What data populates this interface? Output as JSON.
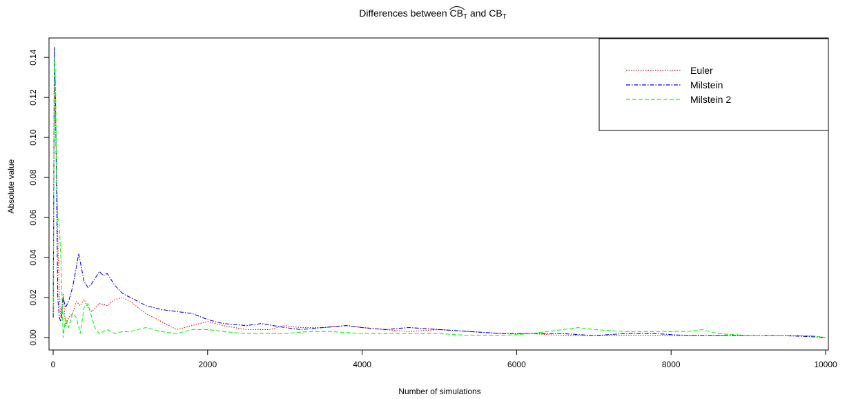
{
  "chart_data": {
    "type": "line",
    "title": {
      "prefix": "Differences between ",
      "term1": "CB",
      "sub1": "T",
      "conjunction": " and ",
      "term2": "CB",
      "sub2": "T"
    },
    "xlabel": "Number of simulations",
    "ylabel": "Absolute value",
    "xlim": [
      0,
      10000
    ],
    "ylim": [
      0,
      0.148
    ],
    "xticks": [
      0,
      2000,
      4000,
      6000,
      8000,
      10000
    ],
    "yticks": [
      0.0,
      0.02,
      0.04,
      0.06,
      0.08,
      0.1,
      0.12,
      0.14
    ],
    "ytick_labels": [
      "0.00",
      "0.02",
      "0.04",
      "0.06",
      "0.08",
      "0.10",
      "0.12",
      "0.14"
    ],
    "legend_position": "top-right",
    "series": [
      {
        "name": "Euler",
        "color": "#ff0000",
        "dash": "dotted",
        "x": [
          1,
          15,
          30,
          45,
          60,
          80,
          100,
          130,
          160,
          200,
          250,
          300,
          350,
          400,
          450,
          500,
          600,
          700,
          800,
          900,
          1000,
          1200,
          1400,
          1600,
          1800,
          2000,
          2200,
          2500,
          2800,
          3000,
          3200,
          3500,
          3800,
          4000,
          4300,
          4600,
          5000,
          5400,
          5800,
          6200,
          6600,
          7000,
          7400,
          7800,
          8200,
          8600,
          9000,
          9400,
          9800,
          10000
        ],
        "y": [
          0.012,
          0.125,
          0.105,
          0.09,
          0.05,
          0.02,
          0.01,
          0.022,
          0.006,
          0.01,
          0.012,
          0.018,
          0.016,
          0.019,
          0.015,
          0.013,
          0.017,
          0.016,
          0.019,
          0.02,
          0.018,
          0.012,
          0.008,
          0.004,
          0.006,
          0.008,
          0.006,
          0.004,
          0.004,
          0.006,
          0.005,
          0.005,
          0.006,
          0.005,
          0.004,
          0.003,
          0.004,
          0.003,
          0.002,
          0.002,
          0.001,
          0.001,
          0.001,
          0.001,
          0.001,
          0.001,
          0.001,
          0.001,
          0.001,
          0.0
        ]
      },
      {
        "name": "Milstein",
        "color": "#0000ff",
        "dash": "dashdot",
        "x": [
          1,
          15,
          30,
          45,
          60,
          80,
          100,
          130,
          160,
          200,
          250,
          300,
          330,
          360,
          400,
          450,
          500,
          550,
          600,
          650,
          700,
          800,
          900,
          1000,
          1200,
          1400,
          1600,
          1800,
          2000,
          2200,
          2500,
          2700,
          3000,
          3200,
          3500,
          3800,
          4000,
          4300,
          4600,
          5000,
          5400,
          5800,
          6200,
          6600,
          7000,
          7400,
          7800,
          8200,
          8600,
          9000,
          9400,
          9800,
          10000
        ],
        "y": [
          0.01,
          0.145,
          0.12,
          0.07,
          0.02,
          0.01,
          0.008,
          0.02,
          0.015,
          0.018,
          0.025,
          0.035,
          0.042,
          0.036,
          0.028,
          0.025,
          0.027,
          0.03,
          0.033,
          0.031,
          0.032,
          0.026,
          0.022,
          0.02,
          0.016,
          0.014,
          0.013,
          0.012,
          0.009,
          0.007,
          0.006,
          0.007,
          0.005,
          0.004,
          0.005,
          0.006,
          0.005,
          0.004,
          0.005,
          0.004,
          0.003,
          0.002,
          0.002,
          0.002,
          0.001,
          0.002,
          0.002,
          0.001,
          0.001,
          0.001,
          0.001,
          0.0005,
          0.0
        ]
      },
      {
        "name": "Milstein 2",
        "color": "#00ff00",
        "dash": "dashed",
        "x": [
          1,
          15,
          30,
          45,
          60,
          80,
          100,
          130,
          160,
          200,
          250,
          300,
          350,
          400,
          450,
          500,
          550,
          600,
          700,
          800,
          900,
          1000,
          1200,
          1400,
          1600,
          1800,
          2000,
          2200,
          2500,
          2800,
          3000,
          3300,
          3600,
          4000,
          4300,
          4600,
          5000,
          5400,
          5800,
          6200,
          6600,
          6800,
          7000,
          7400,
          7800,
          8200,
          8400,
          8600,
          9000,
          9400,
          9800,
          10000
        ],
        "y": [
          0.015,
          0.14,
          0.128,
          0.08,
          0.06,
          0.055,
          0.04,
          0.0,
          0.01,
          0.005,
          0.012,
          0.01,
          0.002,
          0.015,
          0.017,
          0.01,
          0.004,
          0.002,
          0.004,
          0.002,
          0.003,
          0.003,
          0.005,
          0.003,
          0.002,
          0.004,
          0.004,
          0.003,
          0.002,
          0.002,
          0.002,
          0.003,
          0.003,
          0.002,
          0.002,
          0.002,
          0.002,
          0.001,
          0.001,
          0.002,
          0.004,
          0.005,
          0.004,
          0.003,
          0.003,
          0.003,
          0.004,
          0.002,
          0.001,
          0.001,
          0.001,
          0.0
        ]
      }
    ]
  }
}
